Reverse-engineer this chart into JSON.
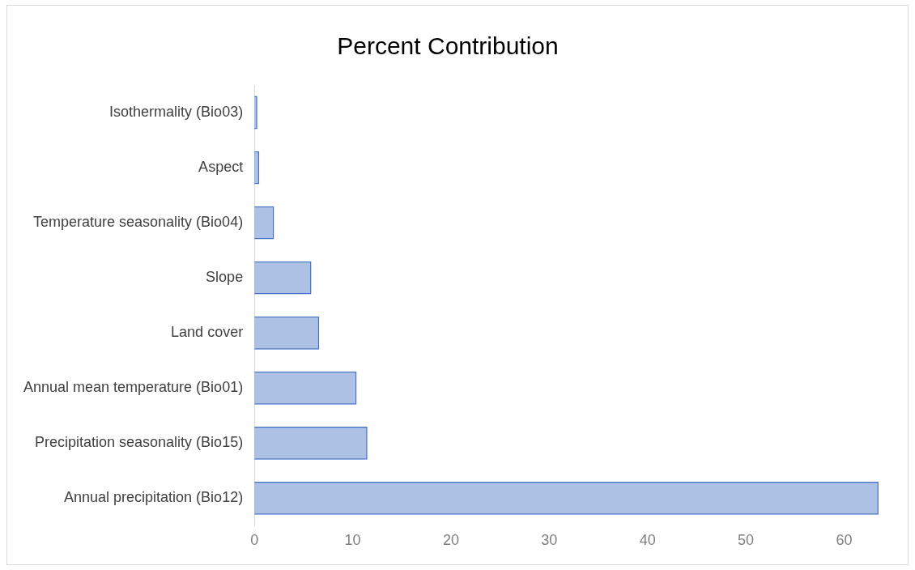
{
  "chart_data": {
    "type": "bar",
    "orientation": "horizontal",
    "title": "Percent Contribution",
    "categories": [
      "Isothermality (Bio03)",
      "Aspect",
      "Temperature seasonality (Bio04)",
      "Slope",
      "Land cover",
      "Annual mean temperature (Bio01)",
      "Precipitation seasonality (Bio15)",
      "Annual precipitation (Bio12)"
    ],
    "values": [
      0.3,
      0.5,
      2.0,
      5.8,
      6.6,
      10.4,
      11.5,
      63.5
    ],
    "color": "#4472c4",
    "xlim": [
      0,
      64
    ],
    "xticks": [
      0,
      10,
      20,
      30,
      40,
      50,
      60
    ],
    "grid": false,
    "legend": false
  }
}
